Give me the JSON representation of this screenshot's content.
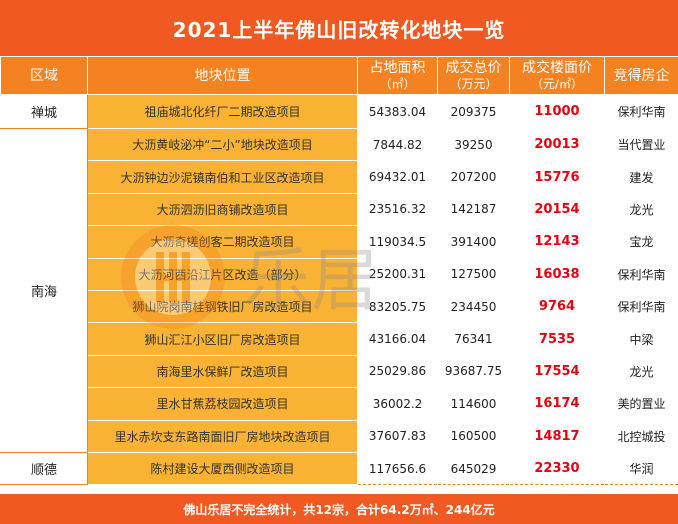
{
  "title": "2021上半年佛山旧改转化地块一览",
  "headers": {
    "region": "区域",
    "plot": "地块位置",
    "area_line1": "占地面积",
    "area_line2": "（㎡）",
    "total_line1": "成交总价",
    "total_line2": "（万元）",
    "price_line1": "成交楼面价",
    "price_line2": "（元/㎡）",
    "developer": "竞得房企"
  },
  "regions": {
    "chancheng": "禅城",
    "nanhai": "南海",
    "shunde": "顺德"
  },
  "rows": [
    {
      "plot": "祖庙城北化纤厂二期改造项目",
      "area": "54383.04",
      "total": "209375",
      "price": "11000",
      "developer": "保利华南"
    },
    {
      "plot": "大沥黄岐泌冲“二小”地块改造项目",
      "area": "7844.82",
      "total": "39250",
      "price": "20013",
      "developer": "当代置业"
    },
    {
      "plot": "大沥钟边沙泥镇南伯和工业区改造项目",
      "area": "69432.01",
      "total": "207200",
      "price": "15776",
      "developer": "建发"
    },
    {
      "plot": "大沥泗沥旧商铺改造项目",
      "area": "23516.32",
      "total": "142187",
      "price": "20154",
      "developer": "龙光"
    },
    {
      "plot": "大沥奇槎创客二期改造项目",
      "area": "119034.5",
      "total": "391400",
      "price": "12143",
      "developer": "宝龙"
    },
    {
      "plot": "大沥河西沿江片区改造（部分）",
      "area": "25200.31",
      "total": "127500",
      "price": "16038",
      "developer": "保利华南"
    },
    {
      "plot": "狮山院岗南桂钢铁旧厂房改造项目",
      "area": "83205.75",
      "total": "234450",
      "price": "9764",
      "developer": "保利华南"
    },
    {
      "plot": "狮山汇江小区旧厂房改造项目",
      "area": "43166.04",
      "total": "76341",
      "price": "7535",
      "developer": "中梁"
    },
    {
      "plot": "南海里水保鲜厂改造项目",
      "area": "25029.86",
      "total": "93687.75",
      "price": "17554",
      "developer": "龙光"
    },
    {
      "plot": "里水甘蕉荔枝园改造项目",
      "area": "36002.2",
      "total": "114600",
      "price": "16174",
      "developer": "美的置业"
    },
    {
      "plot": "里水赤坎支东路南面旧厂房地块改造项目",
      "area": "37607.83",
      "total": "160500",
      "price": "14817",
      "developer": "北控城投"
    },
    {
      "plot": "陈村建设大厦西侧改造项目",
      "area": "117656.6",
      "total": "645029",
      "price": "22330",
      "developer": "华润"
    }
  ],
  "watermark": {
    "text": "乐居",
    "icon": "leju-logo-icon"
  },
  "footer": "佛山乐居不完全统计，共12宗，合计64.2万㎡、244亿元",
  "colors": {
    "title_bg": "#f05a22",
    "header_bg": "#f58220",
    "plot_cell_bg": "#f9b233",
    "price_text": "#e60012"
  }
}
